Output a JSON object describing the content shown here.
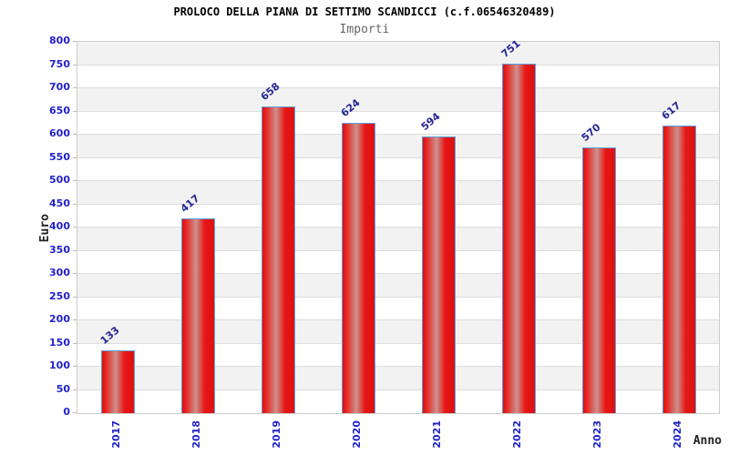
{
  "chart_data": {
    "type": "bar",
    "title": "PROLOCO DELLA PIANA DI SETTIMO SCANDICCI (c.f.06546320489)",
    "subtitle": "Importi",
    "xlabel": "Anno",
    "ylabel": "Euro",
    "categories": [
      "2017",
      "2018",
      "2019",
      "2020",
      "2021",
      "2022",
      "2023",
      "2024"
    ],
    "values": [
      133,
      417,
      658,
      624,
      594,
      751,
      570,
      617
    ],
    "ylim": [
      0,
      800
    ],
    "ytick_step": 50,
    "grid": "alternating-horizontal-bands",
    "legend_position": "none",
    "colors": {
      "bar_fill": "#e81414",
      "bar_fill_mid": "#cc918d",
      "bar_border": "#58a0e0",
      "axis_tick_label": "#2222cc",
      "value_label": "#252596",
      "band_gray": "#f2f2f2",
      "band_white": "#ffffff",
      "plot_border": "#cccccc",
      "title": "#000000",
      "subtitle": "#666666",
      "axis_title": "#222222"
    }
  }
}
